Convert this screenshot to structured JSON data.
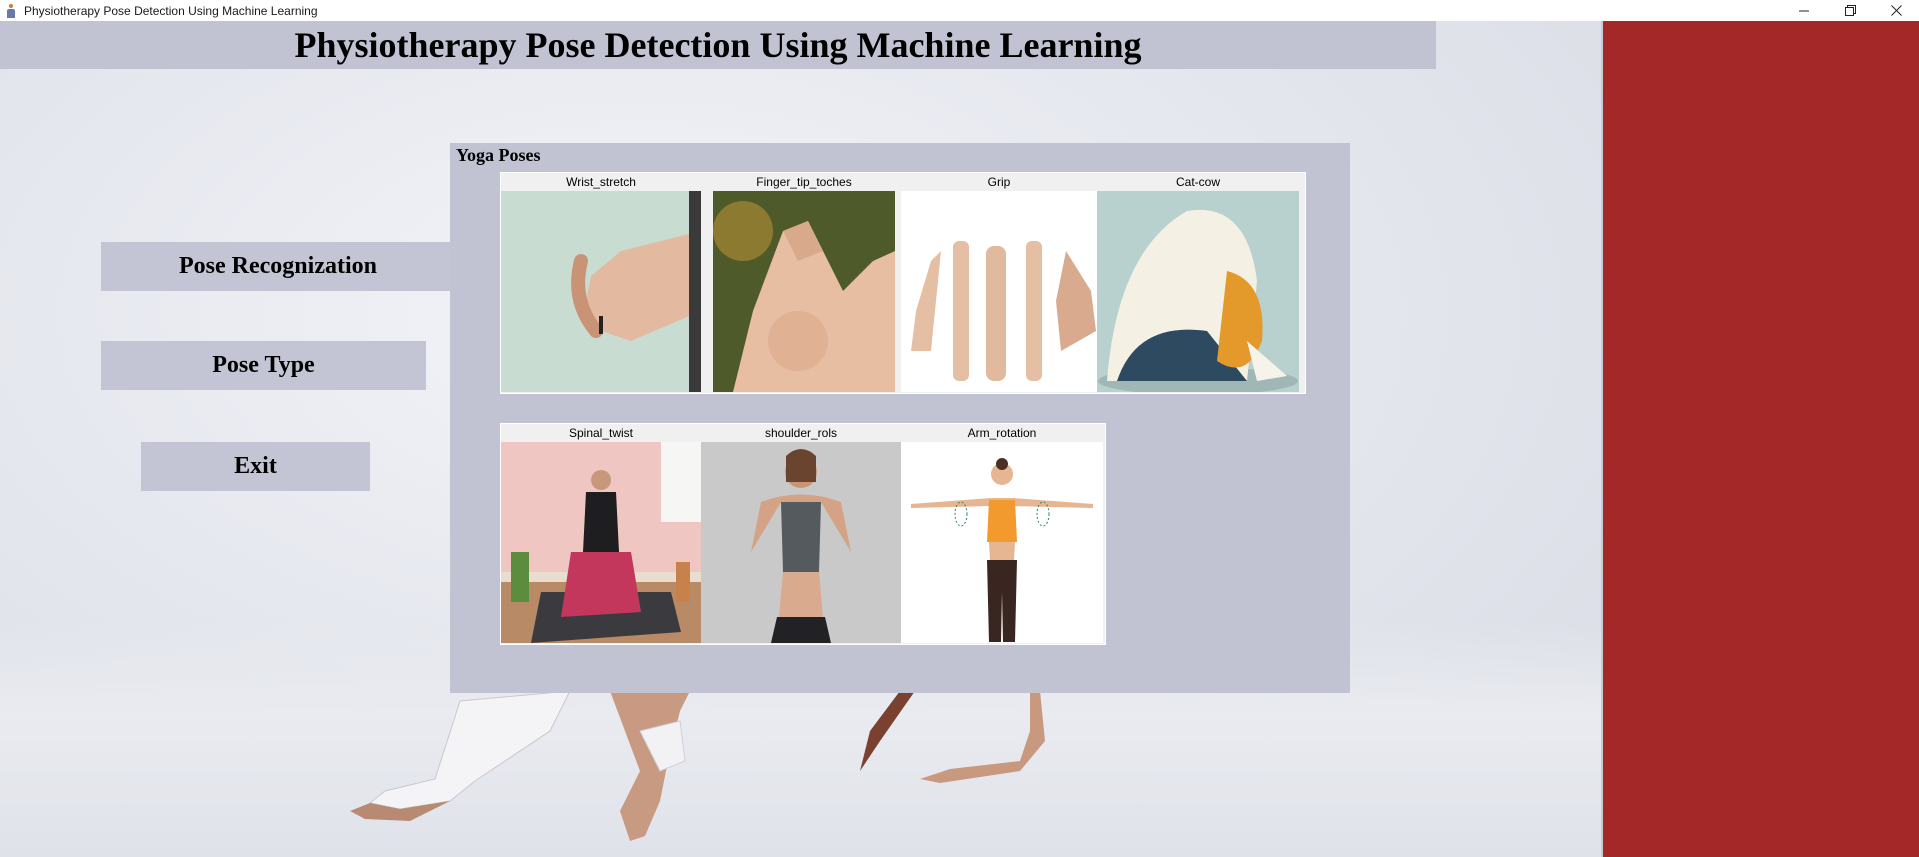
{
  "window": {
    "title": "Physiotherapy Pose Detection Using Machine Learning",
    "controls": [
      "minimize",
      "restore",
      "close"
    ]
  },
  "colors": {
    "panel": "#c1c3d3",
    "side_panel": "#a52828",
    "heading_text": "#000000"
  },
  "header": {
    "title": "Physiotherapy Pose Detection Using Machine Learning"
  },
  "nav": {
    "pose_recognization": "Pose Recognization",
    "pose_type": "Pose Type",
    "exit": "Exit"
  },
  "poses_panel": {
    "title": "Yoga Poses",
    "row1": [
      {
        "label": "Wrist_stretch",
        "icon": "wrist-stretch-photo"
      },
      {
        "label": "Finger_tip_toches",
        "icon": "finger-tip-photo"
      },
      {
        "label": "Grip",
        "icon": "grip-hands-photo"
      },
      {
        "label": "Cat-cow",
        "icon": "cat-cow-photo"
      }
    ],
    "row2": [
      {
        "label": "Spinal_twist",
        "icon": "spinal-twist-photo"
      },
      {
        "label": "shoulder_rols",
        "icon": "shoulder-rolls-photo"
      },
      {
        "label": "Arm_rotation",
        "icon": "arm-rotation-photo"
      }
    ]
  }
}
